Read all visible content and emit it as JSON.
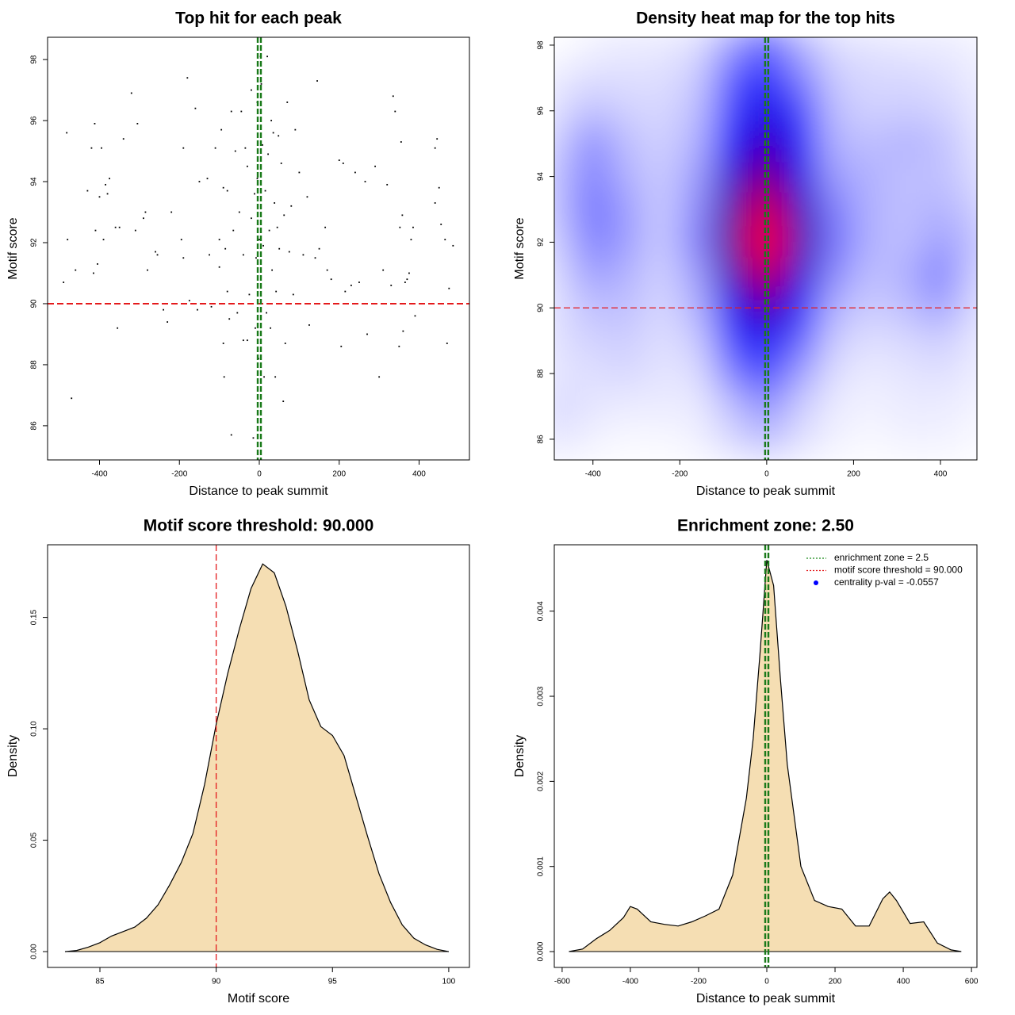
{
  "chart_data": [
    {
      "type": "scatter",
      "title": "Top hit for each peak",
      "x_label": "Distance to peak summit",
      "y_label": "Motif score",
      "color": "#000000",
      "xlim": [
        -530,
        526
      ],
      "ylim": [
        84.88,
        98.73
      ],
      "xticks": [
        -400,
        -200,
        0,
        200,
        400
      ],
      "yticks": [
        86,
        88,
        90,
        92,
        94,
        96,
        98
      ],
      "hline": 90,
      "hline_color": "#e41a1c",
      "vline": 0,
      "vline_color": "#1a7a1a",
      "x": [
        -490,
        -480,
        -482,
        -470,
        -460,
        -430,
        -420,
        -415,
        -412,
        -410,
        -405,
        -400,
        -395,
        -390,
        -385,
        -380,
        -375,
        -360,
        -355,
        -350,
        -340,
        -320,
        -310,
        -305,
        -290,
        -285,
        -280,
        -260,
        -255,
        -240,
        -230,
        -220,
        -195,
        -190,
        -190,
        -180,
        -175,
        -160,
        -155,
        -150,
        -130,
        -125,
        -120,
        -110,
        -100,
        -100,
        -95,
        -90,
        -90,
        -88,
        -85,
        -80,
        -80,
        -75,
        -70,
        -70,
        -65,
        -60,
        -55,
        -50,
        -45,
        -40,
        -40,
        -35,
        -30,
        -30,
        -25,
        -20,
        -20,
        -15,
        -12,
        -10,
        -8,
        -5,
        -5,
        -2,
        0,
        3,
        5,
        8,
        8,
        10,
        12,
        15,
        18,
        20,
        22,
        25,
        28,
        30,
        32,
        35,
        38,
        40,
        42,
        45,
        48,
        50,
        55,
        60,
        62,
        65,
        70,
        75,
        80,
        85,
        90,
        100,
        110,
        120,
        125,
        140,
        145,
        150,
        165,
        170,
        180,
        200,
        205,
        210,
        215,
        230,
        240,
        250,
        265,
        270,
        290,
        300,
        310,
        320,
        330,
        335,
        340,
        350,
        352,
        355,
        358,
        360,
        365,
        370,
        375,
        380,
        385,
        390,
        440,
        440,
        445,
        450,
        455,
        465,
        470,
        475,
        485
      ],
      "y": [
        90.7,
        92.1,
        95.6,
        86.9,
        91.1,
        93.7,
        95.1,
        91.0,
        95.9,
        92.4,
        91.3,
        93.5,
        95.1,
        92.1,
        93.9,
        93.6,
        94.1,
        92.5,
        89.2,
        92.5,
        95.4,
        96.9,
        92.4,
        95.9,
        92.8,
        93.0,
        91.1,
        91.7,
        91.6,
        89.8,
        89.4,
        93.0,
        92.1,
        91.5,
        95.1,
        97.4,
        90.1,
        96.4,
        89.8,
        94.0,
        94.1,
        91.6,
        89.9,
        95.1,
        92.1,
        91.2,
        95.7,
        93.8,
        88.7,
        87.6,
        91.8,
        93.7,
        90.4,
        89.5,
        85.7,
        96.3,
        92.4,
        95.0,
        89.7,
        93.0,
        96.3,
        88.8,
        91.6,
        95.1,
        94.5,
        88.8,
        90.3,
        97.0,
        92.8,
        85.6,
        93.6,
        89.2,
        91.5,
        94.1,
        96.6,
        88.2,
        92.1,
        98.1,
        97.2,
        90.0,
        95.2,
        91.9,
        87.6,
        93.7,
        89.7,
        98.1,
        94.9,
        92.4,
        89.2,
        96.0,
        91.1,
        95.6,
        93.3,
        87.6,
        90.4,
        92.5,
        95.5,
        91.8,
        94.6,
        86.8,
        92.9,
        88.7,
        96.6,
        91.7,
        93.2,
        90.3,
        95.7,
        94.3,
        91.6,
        93.5,
        89.3,
        91.5,
        97.3,
        91.8,
        92.5,
        91.1,
        90.8,
        94.7,
        88.6,
        94.6,
        90.4,
        90.6,
        94.3,
        90.7,
        94.0,
        89.0,
        94.5,
        87.6,
        91.1,
        93.9,
        90.6,
        96.8,
        96.3,
        88.6,
        92.5,
        95.3,
        92.9,
        89.1,
        90.7,
        90.8,
        91.0,
        92.1,
        92.5,
        89.6,
        95.1,
        93.3,
        95.4,
        93.8,
        92.6,
        92.1,
        88.7,
        90.5,
        91.9
      ]
    },
    {
      "type": "heatmap",
      "title": "Density heat map for the top hits",
      "x_label": "Distance to peak summit",
      "y_label": "Motif score",
      "xlim": [
        -489,
        484
      ],
      "ylim": [
        85.37,
        98.24
      ],
      "xticks": [
        -400,
        -200,
        0,
        200,
        400
      ],
      "yticks": [
        86,
        88,
        90,
        92,
        94,
        96,
        98
      ],
      "hline": 90,
      "hline_color": "#e41a1c",
      "vline": 0,
      "vline_color": "#1a7a1a",
      "x": [
        -480,
        -400,
        -320,
        -240,
        -160,
        -80,
        0,
        80,
        160,
        240,
        320,
        400,
        480
      ],
      "y": [
        98,
        97,
        96,
        95,
        94,
        93,
        92,
        91,
        90,
        89,
        88,
        87,
        86
      ],
      "z": [
        [
          0,
          0.02,
          0.03,
          0.03,
          0.05,
          0.15,
          0.25,
          0.12,
          0.05,
          0.04,
          0.03,
          0.03,
          0.02
        ],
        [
          0.03,
          0.05,
          0.05,
          0.05,
          0.08,
          0.25,
          0.35,
          0.2,
          0.08,
          0.06,
          0.06,
          0.05,
          0.03
        ],
        [
          0.05,
          0.1,
          0.07,
          0.06,
          0.1,
          0.3,
          0.45,
          0.3,
          0.1,
          0.07,
          0.08,
          0.07,
          0.04
        ],
        [
          0.08,
          0.18,
          0.1,
          0.07,
          0.12,
          0.4,
          0.55,
          0.38,
          0.12,
          0.1,
          0.12,
          0.1,
          0.05
        ],
        [
          0.1,
          0.2,
          0.12,
          0.08,
          0.15,
          0.5,
          0.7,
          0.45,
          0.15,
          0.12,
          0.1,
          0.1,
          0.06
        ],
        [
          0.1,
          0.22,
          0.15,
          0.08,
          0.18,
          0.6,
          0.9,
          0.55,
          0.2,
          0.12,
          0.1,
          0.12,
          0.08
        ],
        [
          0.08,
          0.2,
          0.15,
          0.08,
          0.2,
          0.65,
          1,
          0.6,
          0.22,
          0.12,
          0.1,
          0.15,
          0.1
        ],
        [
          0.06,
          0.15,
          0.12,
          0.07,
          0.15,
          0.55,
          0.85,
          0.5,
          0.18,
          0.1,
          0.12,
          0.2,
          0.08
        ],
        [
          0.05,
          0.1,
          0.1,
          0.06,
          0.12,
          0.42,
          0.6,
          0.38,
          0.12,
          0.08,
          0.1,
          0.15,
          0.06
        ],
        [
          0.05,
          0.07,
          0.08,
          0.05,
          0.08,
          0.3,
          0.42,
          0.25,
          0.08,
          0.05,
          0.06,
          0.08,
          0.04
        ],
        [
          0.04,
          0.05,
          0.06,
          0.04,
          0.05,
          0.2,
          0.3,
          0.15,
          0.05,
          0.03,
          0.04,
          0.05,
          0.03
        ],
        [
          0.06,
          0.04,
          0.03,
          0.03,
          0.03,
          0.1,
          0.18,
          0.08,
          0.03,
          0.02,
          0.03,
          0.03,
          0.02
        ],
        [
          0.04,
          0.02,
          0.01,
          0.01,
          0.02,
          0.06,
          0.1,
          0.05,
          0.02,
          0.01,
          0.02,
          0.02,
          0.01
        ]
      ]
    },
    {
      "type": "density",
      "title": "Motif score threshold: 90.000",
      "x_label": "Motif score",
      "y_label": "Density",
      "color": "#f5deb3",
      "xlim": [
        82.75,
        100.89
      ],
      "ylim": [
        -0.0071,
        0.1826
      ],
      "xticks": [
        85,
        90,
        95,
        100
      ],
      "yticks": [
        {
          "value": 0,
          "label": "0.00"
        },
        0.05,
        {
          "value": 0.1,
          "label": "0.10"
        },
        0.15
      ],
      "vline": 90,
      "vline_color": "#e41a1c",
      "x": [
        83.5,
        84,
        84.5,
        85,
        85.5,
        86,
        86.5,
        87,
        87.5,
        88,
        88.5,
        89,
        89.5,
        90,
        90.5,
        91,
        91.5,
        92,
        92.5,
        93,
        93.5,
        94,
        94.5,
        95,
        95.5,
        96,
        96.5,
        97,
        97.5,
        98,
        98.5,
        99,
        99.5,
        100
      ],
      "y": [
        0,
        0.0005,
        0.002,
        0.004,
        0.007,
        0.009,
        0.011,
        0.015,
        0.021,
        0.03,
        0.04,
        0.053,
        0.075,
        0.102,
        0.125,
        0.145,
        0.163,
        0.174,
        0.17,
        0.155,
        0.135,
        0.113,
        0.101,
        0.097,
        0.088,
        0.07,
        0.052,
        0.035,
        0.022,
        0.012,
        0.006,
        0.003,
        0.001,
        0
      ]
    },
    {
      "type": "density",
      "title": "Enrichment zone: 2.50",
      "x_label": "Distance to peak summit",
      "y_label": "Density",
      "color": "#f5deb3",
      "xlim": [
        -623,
        616
      ],
      "ylim": [
        -0.000186,
        0.00478
      ],
      "xticks": [
        -600,
        -400,
        -200,
        0,
        200,
        400,
        600
      ],
      "yticks": [
        {
          "value": 0,
          "label": "0.000"
        },
        0.001,
        0.002,
        0.003,
        0.004
      ],
      "vline": 0,
      "vline_color": "#1a7a1a",
      "x": [
        -580,
        -540,
        -500,
        -460,
        -420,
        -400,
        -380,
        -340,
        -300,
        -260,
        -220,
        -180,
        -140,
        -100,
        -60,
        -40,
        -20,
        0,
        20,
        40,
        60,
        100,
        140,
        180,
        220,
        260,
        300,
        340,
        360,
        380,
        420,
        460,
        500,
        540,
        570
      ],
      "y": [
        0,
        3e-05,
        0.00015,
        0.00025,
        0.0004,
        0.00053,
        0.0005,
        0.00035,
        0.00032,
        0.0003,
        0.00035,
        0.00042,
        0.0005,
        0.0009,
        0.0018,
        0.0025,
        0.0035,
        0.0046,
        0.0043,
        0.0032,
        0.0022,
        0.001,
        0.0006,
        0.00053,
        0.0005,
        0.0003,
        0.0003,
        0.00062,
        0.0007,
        0.0006,
        0.00033,
        0.00035,
        0.0001,
        2e-05,
        0
      ],
      "legend": "topright",
      "legend_entries": [
        {
          "label": "enrichment zone = 2.5",
          "color": "#1a8a1a",
          "mark": "dotted"
        },
        {
          "label": "motif score threshold = 90.000",
          "color": "#e41a1c",
          "mark": "dotted"
        },
        {
          "label": "centrality p-val = -0.0557",
          "color": "#0000ff",
          "mark": "dot"
        }
      ]
    }
  ]
}
